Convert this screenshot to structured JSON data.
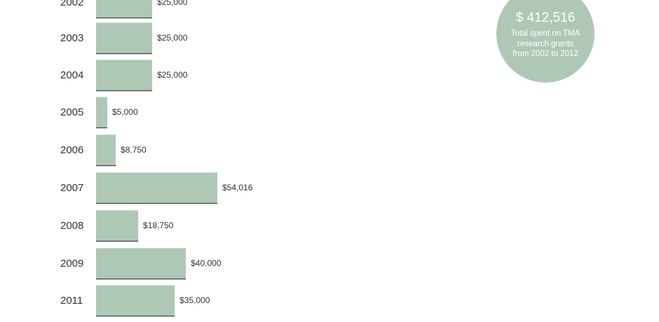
{
  "chart_data": {
    "type": "bar",
    "orientation": "horizontal",
    "categories": [
      "2002",
      "2003",
      "2004",
      "2005",
      "2006",
      "2007",
      "2008",
      "2009",
      "2011"
    ],
    "values": [
      25000,
      25000,
      25000,
      5000,
      8750,
      54016,
      18750,
      40000,
      35000
    ],
    "value_labels": [
      "$25,000",
      "$25,000",
      "$25,000",
      "$5,000",
      "$8,750",
      "$54,016",
      "$18,750",
      "$40,000",
      "$35,000"
    ],
    "bar_color": "#afc8b6",
    "title": "",
    "xlabel": "",
    "ylabel": ""
  },
  "summary": {
    "total": "$ 412,516",
    "caption_lines": [
      "Total spent on TMA",
      "research grants",
      "from 2002 to 2012"
    ],
    "circle_color": "#afc8b6"
  }
}
